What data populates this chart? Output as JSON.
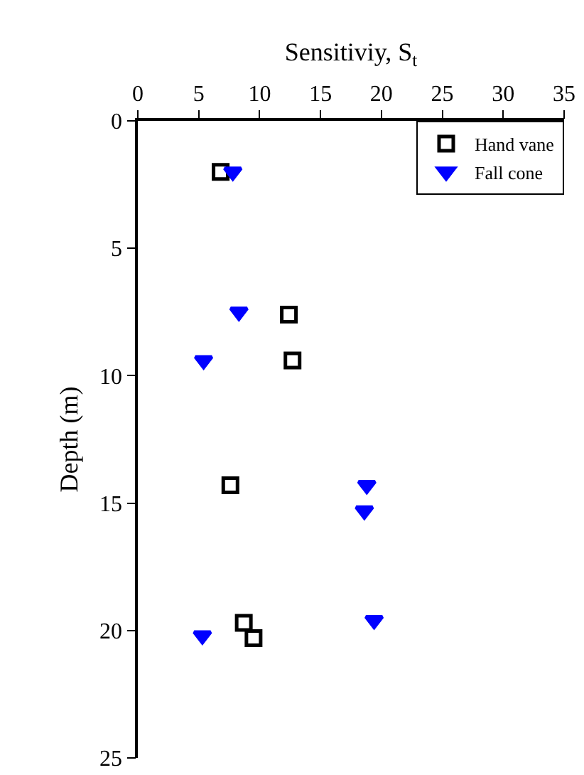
{
  "chart_data": {
    "type": "scatter",
    "xlabel": "Sensitiviy, S$_{t}$",
    "ylabel": "Depth (m)",
    "xlim": [
      0,
      35
    ],
    "xticks": [
      0,
      5,
      10,
      15,
      20,
      25,
      30,
      35
    ],
    "ylim": [
      25,
      0
    ],
    "yticks": [
      0,
      5,
      10,
      15,
      20,
      25
    ],
    "grid": false,
    "legend": "top right",
    "series": [
      {
        "name": "Hand vane",
        "color": "#000000",
        "marker": "square",
        "x": [
          6.8,
          12.4,
          12.7,
          7.6,
          8.7,
          9.5
        ],
        "values": [
          2.0,
          7.6,
          9.4,
          14.3,
          19.7,
          20.3
        ]
      },
      {
        "name": "Fall cone",
        "color": "#0000ff",
        "marker": "triangle",
        "x": [
          7.8,
          8.3,
          5.4,
          18.8,
          18.6,
          19.4,
          5.3
        ],
        "values": [
          2.0,
          7.5,
          9.4,
          14.3,
          15.3,
          19.6,
          20.2
        ]
      }
    ]
  }
}
